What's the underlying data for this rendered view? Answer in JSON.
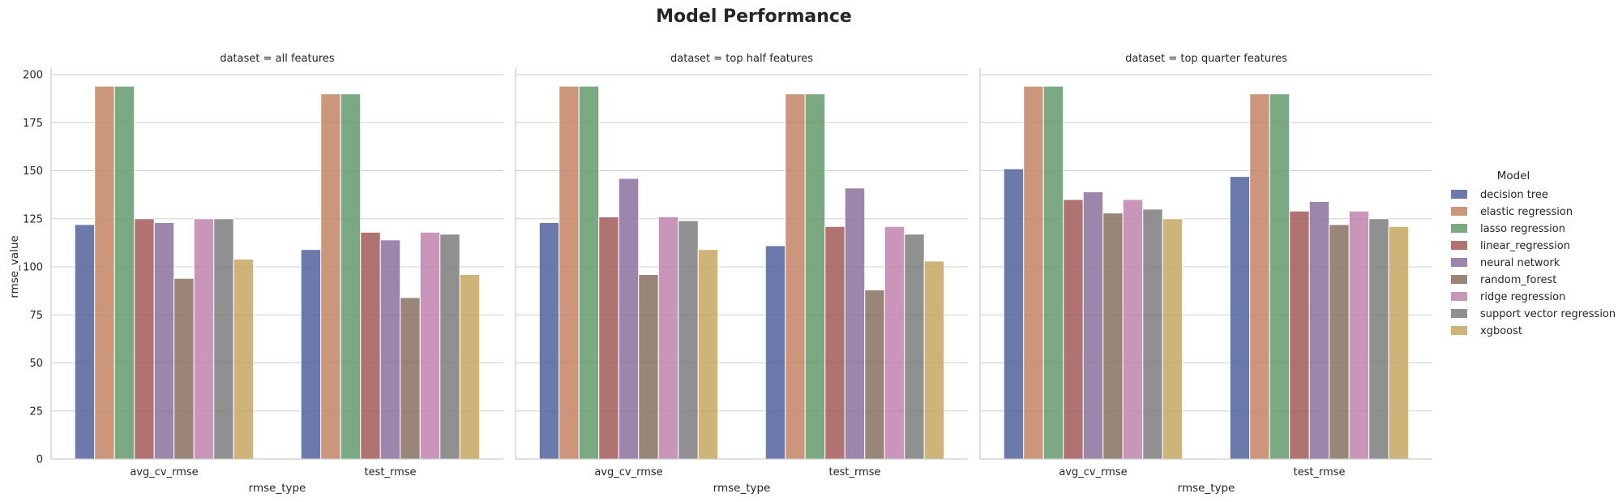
{
  "chart_data": {
    "type": "bar",
    "title": "Model Performance",
    "facet_label_prefix": "dataset = ",
    "facets": [
      "all features",
      "top half features",
      "top quarter features"
    ],
    "categories": [
      "avg_cv_rmse",
      "test_rmse"
    ],
    "xlabel": "rmse_type",
    "ylabel": "rmse_value",
    "ylim": [
      0,
      200
    ],
    "yticks": [
      0,
      25,
      50,
      75,
      100,
      125,
      150,
      175,
      200
    ],
    "grid": true,
    "legend_placement": "right",
    "legend_title": "Model",
    "series": [
      {
        "name": "decision tree",
        "color": "#4c5c99",
        "values": [
          [
            122,
            109
          ],
          [
            123,
            111
          ],
          [
            151,
            147
          ]
        ]
      },
      {
        "name": "elastic regression",
        "color": "#c07f5e",
        "values": [
          [
            194,
            190
          ],
          [
            194,
            190
          ],
          [
            194,
            190
          ]
        ]
      },
      {
        "name": "lasso regression",
        "color": "#5e9668",
        "values": [
          [
            194,
            190
          ],
          [
            194,
            190
          ],
          [
            194,
            190
          ]
        ]
      },
      {
        "name": "linear_regression",
        "color": "#a05452",
        "values": [
          [
            125,
            118
          ],
          [
            126,
            121
          ],
          [
            135,
            129
          ]
        ]
      },
      {
        "name": "neural network",
        "color": "#876b98",
        "values": [
          [
            123,
            114
          ],
          [
            146,
            141
          ],
          [
            139,
            134
          ]
        ]
      },
      {
        "name": "random_forest",
        "color": "#836b5b",
        "values": [
          [
            94,
            84
          ],
          [
            96,
            88
          ],
          [
            128,
            122
          ]
        ]
      },
      {
        "name": "ridge regression",
        "color": "#bd7faa",
        "values": [
          [
            125,
            118
          ],
          [
            126,
            121
          ],
          [
            135,
            129
          ]
        ]
      },
      {
        "name": "support vector regression",
        "color": "#787878",
        "values": [
          [
            125,
            117
          ],
          [
            124,
            117
          ],
          [
            130,
            125
          ]
        ]
      },
      {
        "name": "xgboost",
        "color": "#c4a35d",
        "values": [
          [
            104,
            96
          ],
          [
            109,
            103
          ],
          [
            125,
            121
          ]
        ]
      }
    ]
  }
}
